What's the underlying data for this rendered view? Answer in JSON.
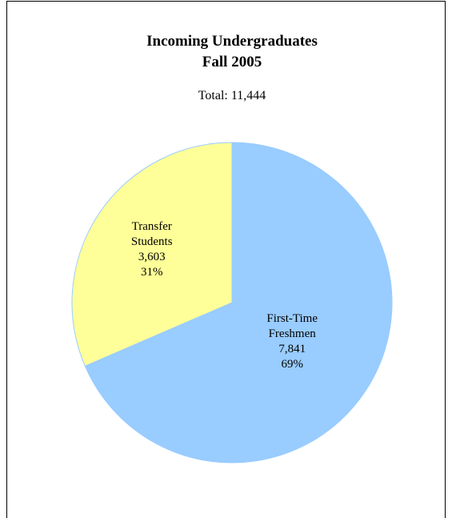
{
  "chart_data": {
    "type": "pie",
    "title": [
      "Incoming Undergraduates",
      "Fall 2005"
    ],
    "subtitle": "Total: 11,444",
    "categories": [
      "First-Time Freshmen",
      "Transfer Students"
    ],
    "values": [
      7841,
      3603
    ],
    "value_labels": [
      "7,841",
      "3,603"
    ],
    "percentages": [
      69,
      31
    ],
    "percentage_labels": [
      "69%",
      "31%"
    ],
    "colors": [
      "#99ccff",
      "#ffff99"
    ]
  }
}
